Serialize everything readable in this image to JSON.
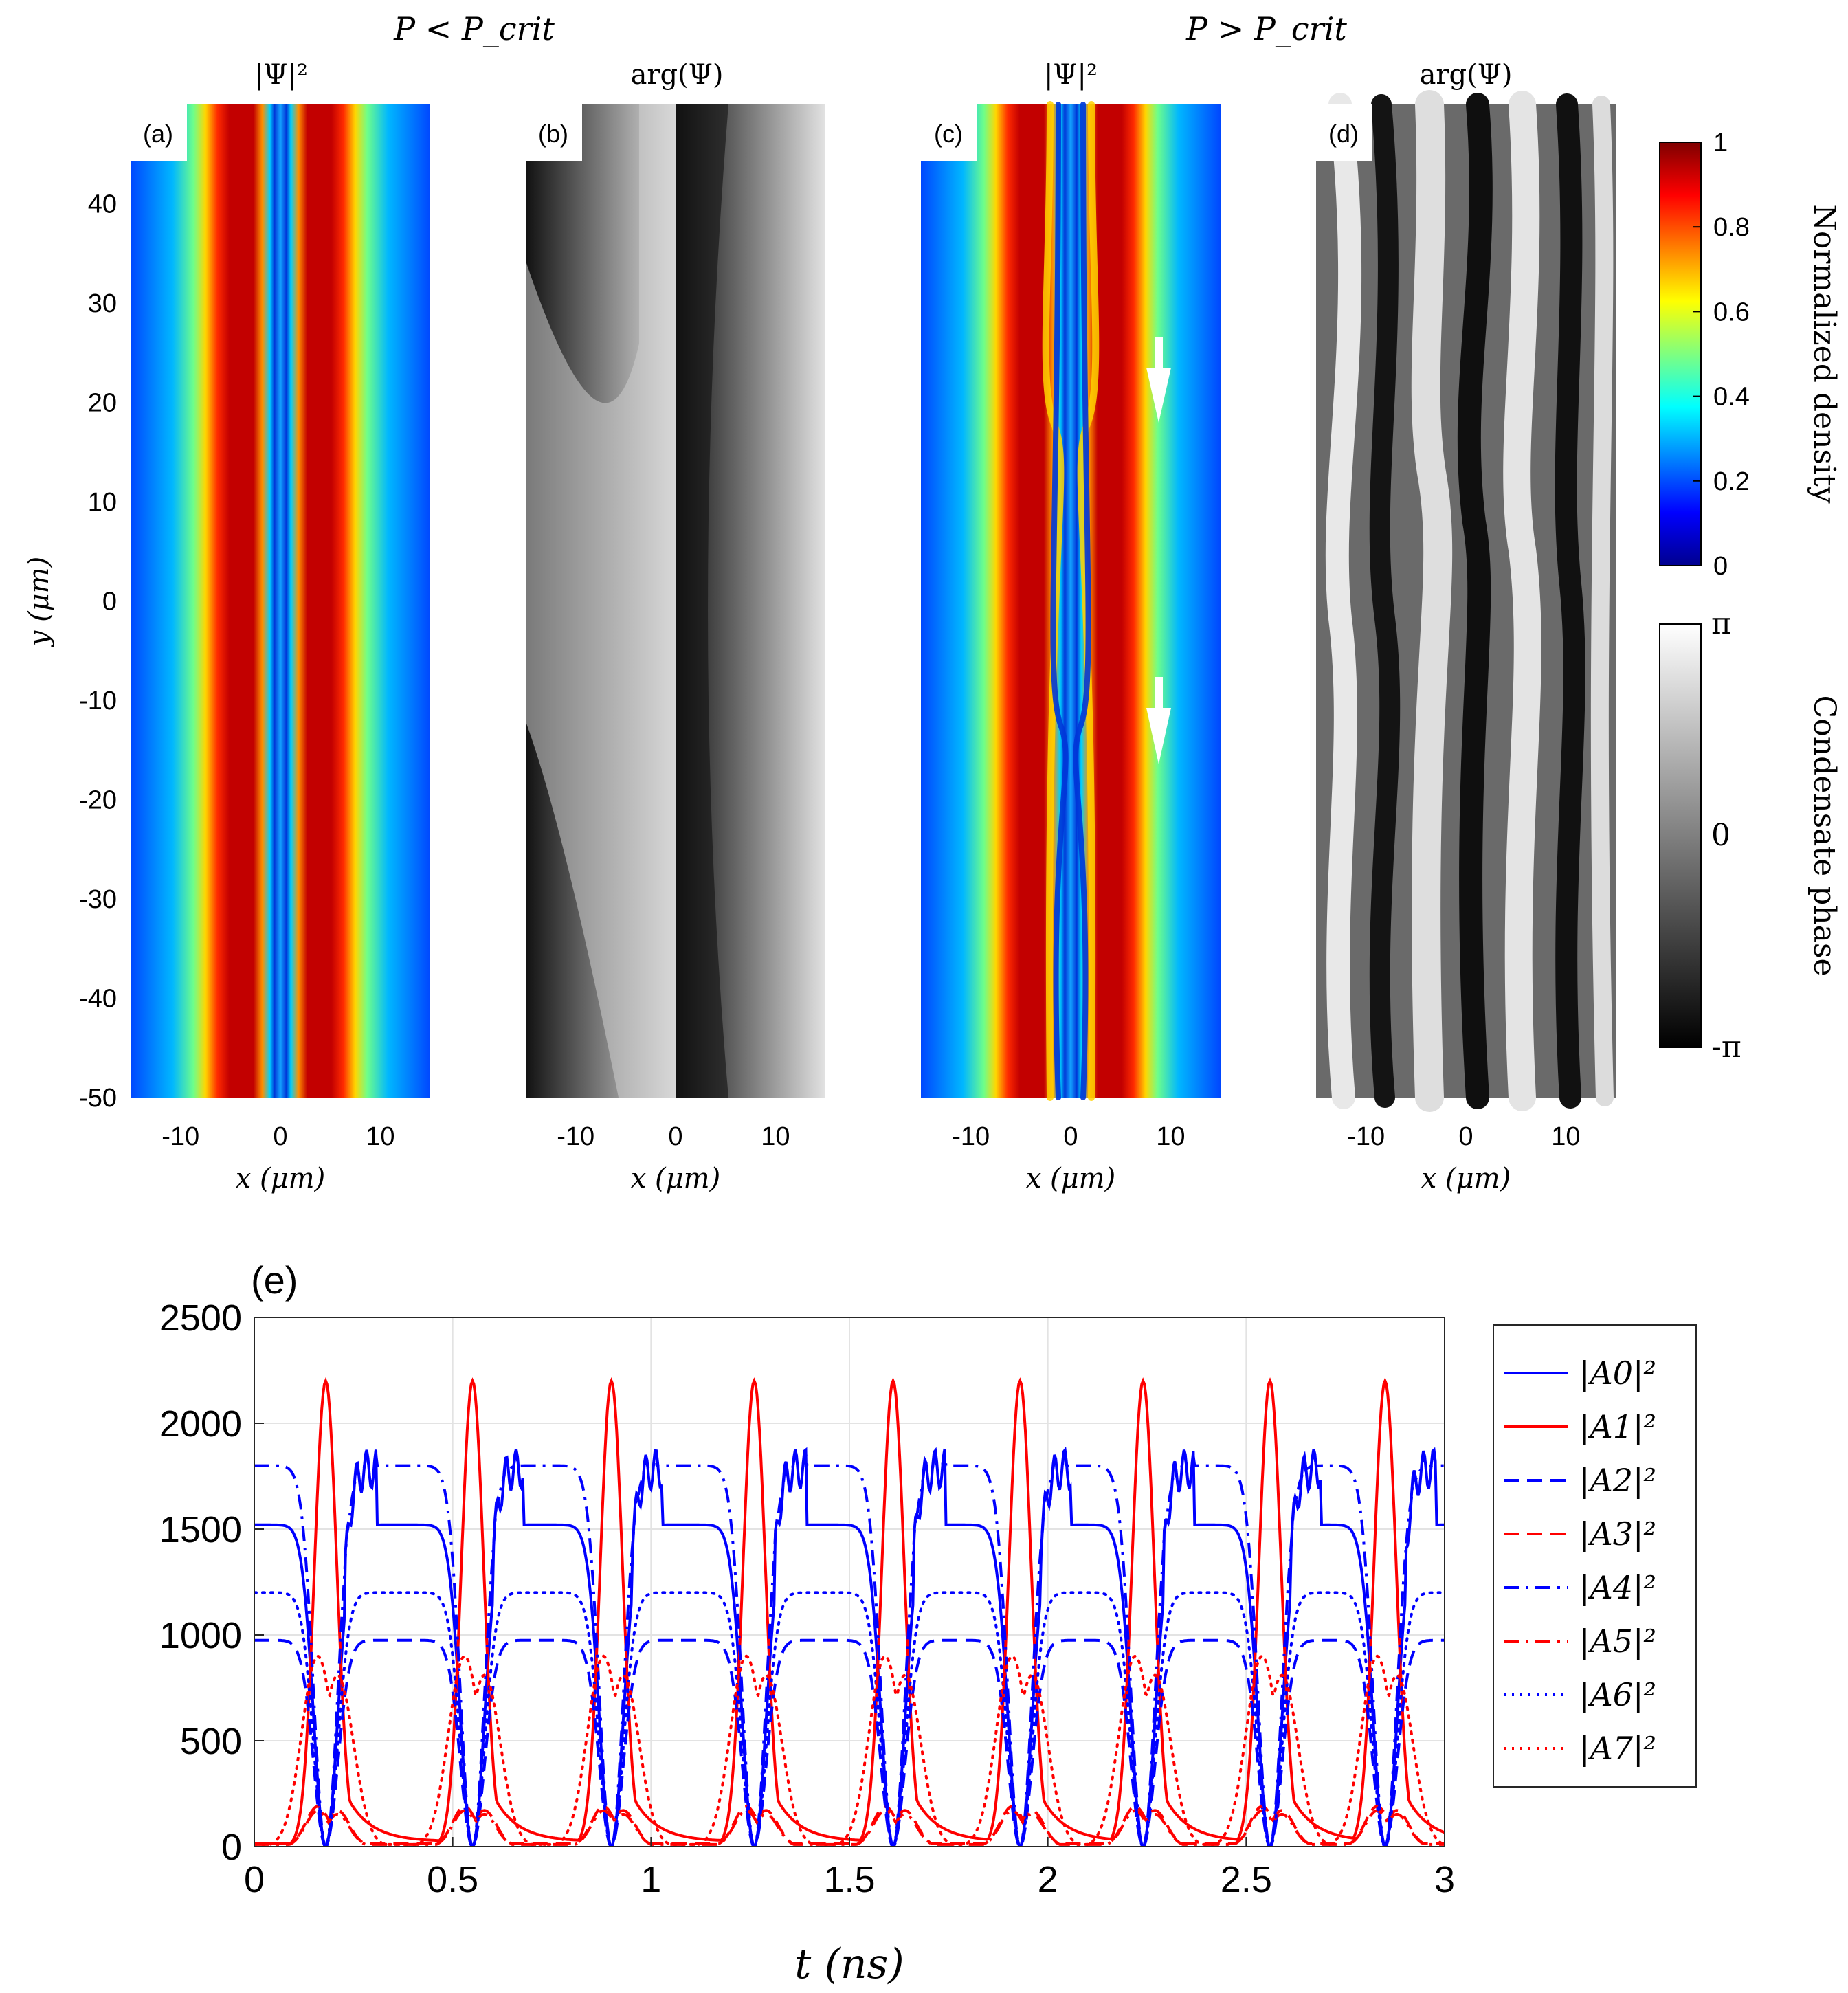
{
  "header": {
    "left": "P < P_crit",
    "right": "P > P_crit"
  },
  "panels": [
    {
      "label": "(a)",
      "title": "|Ψ|²",
      "kind": "density",
      "moving": false
    },
    {
      "label": "(b)",
      "title": "arg(Ψ)",
      "kind": "phase",
      "moving": false
    },
    {
      "label": "(c)",
      "title": "|Ψ|²",
      "kind": "density",
      "moving": true
    },
    {
      "label": "(d)",
      "title": "arg(Ψ)",
      "kind": "phase",
      "moving": true
    }
  ],
  "map_axes": {
    "xlabel": "x (μm)",
    "ylabel": "y (μm)",
    "xlim": [
      -15,
      15
    ],
    "ylim": [
      -50,
      50
    ],
    "xticks": [
      -10,
      0,
      10
    ],
    "yticks": [
      40,
      30,
      20,
      10,
      0,
      -10,
      -20,
      -30,
      -40,
      -50
    ]
  },
  "colorbars": {
    "density": {
      "label": "Normalized density",
      "ticks": [
        "1",
        "0.8",
        "0.6",
        "0.4",
        "0.2",
        "0"
      ]
    },
    "phase": {
      "label": "Condensate phase",
      "ticks": [
        "π",
        "0",
        "-π"
      ]
    }
  },
  "arrow_icons": [
    "down-arrow-icon",
    "down-arrow-icon"
  ],
  "chart_data": {
    "type": "line",
    "panel_label": "(e)",
    "xlabel": "t (ns)",
    "ylabel": "",
    "xlim": [
      0,
      3
    ],
    "ylim": [
      0,
      2500
    ],
    "xticks": [
      "0",
      "0.5",
      "1",
      "1.5",
      "2",
      "2.5",
      "3"
    ],
    "yticks": [
      "0",
      "500",
      "1000",
      "1500",
      "2000",
      "2500"
    ],
    "grid": true,
    "legend_position": "right",
    "period_ns": 0.342,
    "pulse_times_ns": [
      0.18,
      0.55,
      0.9,
      1.26,
      1.61,
      1.93,
      2.24,
      2.56,
      2.85
    ],
    "series": [
      {
        "name": "|A0|²",
        "color": "#0000ff",
        "style": "solid",
        "plateau": 1520,
        "peak": 1880,
        "min": 0
      },
      {
        "name": "|A1|²",
        "color": "#ff0000",
        "style": "solid",
        "plateau": 80,
        "peak": 2200,
        "min": 0
      },
      {
        "name": "|A2|²",
        "color": "#0000ff",
        "style": "dashed",
        "plateau": 975,
        "peak": 975,
        "min": 0
      },
      {
        "name": "|A3|²",
        "color": "#ff0000",
        "style": "dashed",
        "plateau": 15,
        "peak": 190,
        "min": 0
      },
      {
        "name": "|A4|²",
        "color": "#0000ff",
        "style": "dashdot",
        "plateau": 1800,
        "peak": 1860,
        "min": 0
      },
      {
        "name": "|A5|²",
        "color": "#ff0000",
        "style": "dashdot",
        "plateau": 10,
        "peak": 170,
        "min": 0
      },
      {
        "name": "|A6|²",
        "color": "#0000ff",
        "style": "dotted",
        "plateau": 1200,
        "peak": 1200,
        "min": 0
      },
      {
        "name": "|A7|²",
        "color": "#ff0000",
        "style": "dotted",
        "plateau": 10,
        "peak": 900,
        "min": 0
      }
    ]
  }
}
